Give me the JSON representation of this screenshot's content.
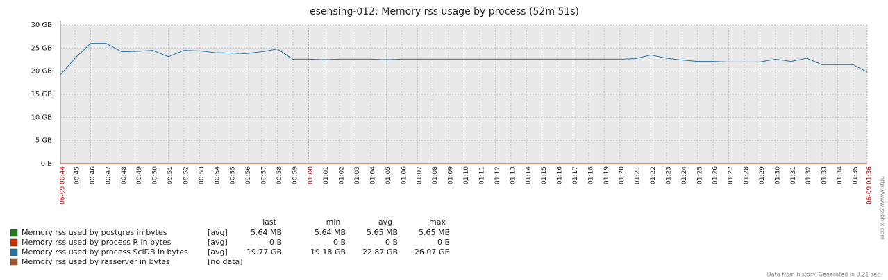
{
  "chart_data": {
    "type": "line",
    "title": "esensing-012: Memory rss usage by process (52m 51s)",
    "x": [
      "06-09 00:44",
      "00:45",
      "00:46",
      "00:47",
      "00:48",
      "00:49",
      "00:50",
      "00:51",
      "00:52",
      "00:53",
      "00:54",
      "00:55",
      "00:56",
      "00:57",
      "00:58",
      "00:59",
      "01:00",
      "01:01",
      "01:02",
      "01:03",
      "01:04",
      "01:05",
      "01:06",
      "01:07",
      "01:08",
      "01:09",
      "01:10",
      "01:11",
      "01:12",
      "01:13",
      "01:14",
      "01:15",
      "01:16",
      "01:17",
      "01:18",
      "01:19",
      "01:20",
      "01:21",
      "01:22",
      "01:23",
      "01:24",
      "01:25",
      "01:26",
      "01:27",
      "01:28",
      "01:29",
      "01:30",
      "01:31",
      "01:32",
      "01:33",
      "01:34",
      "01:35",
      "06-09 01:36"
    ],
    "ylim": [
      0,
      30
    ],
    "yticks": [
      {
        "value": 0,
        "label": "0 B"
      },
      {
        "value": 5,
        "label": "5 GB"
      },
      {
        "value": 10,
        "label": "10 GB"
      },
      {
        "value": 15,
        "label": "15 GB"
      },
      {
        "value": 20,
        "label": "20 GB"
      },
      {
        "value": 25,
        "label": "25 GB"
      },
      {
        "value": 30,
        "label": "30 GB"
      }
    ],
    "grid": true,
    "major_tick_color": "#cc0000",
    "stats_header": [
      "last",
      "min",
      "avg",
      "max"
    ],
    "series": [
      {
        "name": "Memory rss used by postgres in bytes",
        "color": "#1a7c1a",
        "func": "[avg]",
        "stats": [
          "5.64 MB",
          "5.64 MB",
          "5.65 MB",
          "5.65 MB"
        ],
        "values": [
          0.00564,
          0.00564,
          0.00564,
          0.00564,
          0.00564,
          0.00564,
          0.00564,
          0.00564,
          0.00564,
          0.00564,
          0.00564,
          0.00564,
          0.00564,
          0.00564,
          0.00564,
          0.00564,
          0.00564,
          0.00564,
          0.00564,
          0.00564,
          0.00564,
          0.00564,
          0.00564,
          0.00564,
          0.00564,
          0.00564,
          0.00564,
          0.00564,
          0.00564,
          0.00564,
          0.00564,
          0.00564,
          0.00564,
          0.00564,
          0.00564,
          0.00564,
          0.00564,
          0.00564,
          0.00564,
          0.00564,
          0.00564,
          0.00564,
          0.00564,
          0.00564,
          0.00564,
          0.00564,
          0.00564,
          0.00564,
          0.00564,
          0.00564,
          0.00564,
          0.00564,
          0.00564
        ]
      },
      {
        "name": "Memory rss used by process R in bytes",
        "color": "#cc3300",
        "func": "[avg]",
        "stats": [
          "0 B",
          "0 B",
          "0 B",
          "0 B"
        ],
        "values": [
          0,
          0,
          0,
          0,
          0,
          0,
          0,
          0,
          0,
          0,
          0,
          0,
          0,
          0,
          0,
          0,
          0,
          0,
          0,
          0,
          0,
          0,
          0,
          0,
          0,
          0,
          0,
          0,
          0,
          0,
          0,
          0,
          0,
          0,
          0,
          0,
          0,
          0,
          0,
          0,
          0,
          0,
          0,
          0,
          0,
          0,
          0,
          0,
          0,
          0,
          0,
          0,
          0
        ]
      },
      {
        "name": "Memory rss used by process SciDB in bytes",
        "color": "#2774a4",
        "func": "[avg]",
        "stats": [
          "19.77 GB",
          "19.18 GB",
          "22.87 GB",
          "26.07 GB"
        ],
        "values": [
          19.2,
          22.8,
          26.0,
          26.0,
          24.2,
          24.3,
          24.5,
          23.1,
          24.5,
          24.4,
          24.0,
          23.9,
          23.8,
          24.2,
          24.8,
          22.6,
          22.6,
          22.5,
          22.6,
          22.6,
          22.6,
          22.5,
          22.6,
          22.6,
          22.6,
          22.6,
          22.6,
          22.6,
          22.6,
          22.6,
          22.6,
          22.6,
          22.6,
          22.6,
          22.6,
          22.6,
          22.6,
          22.7,
          23.5,
          22.8,
          22.4,
          22.1,
          22.1,
          22.0,
          22.0,
          22.0,
          22.6,
          22.1,
          22.8,
          21.4,
          21.4,
          21.4,
          19.8
        ]
      },
      {
        "name": "Memory rss used by rasserver in bytes",
        "color": "#9c5a2a",
        "func": "[no data]",
        "stats": [
          null,
          null,
          null,
          null
        ],
        "values": [
          null,
          null,
          null,
          null,
          null,
          null,
          null,
          null,
          null,
          null,
          null,
          null,
          null,
          null,
          null,
          null,
          null,
          null,
          null,
          null,
          null,
          null,
          null,
          null,
          null,
          null,
          null,
          null,
          null,
          null,
          null,
          null,
          null,
          null,
          null,
          null,
          null,
          null,
          null,
          null,
          null,
          null,
          null,
          null,
          null,
          null,
          null,
          null,
          null,
          null,
          null,
          null,
          null
        ]
      }
    ],
    "side_text": "http://www.zabbix.com",
    "footer": "Data from history. Generated in 0.21 sec."
  }
}
